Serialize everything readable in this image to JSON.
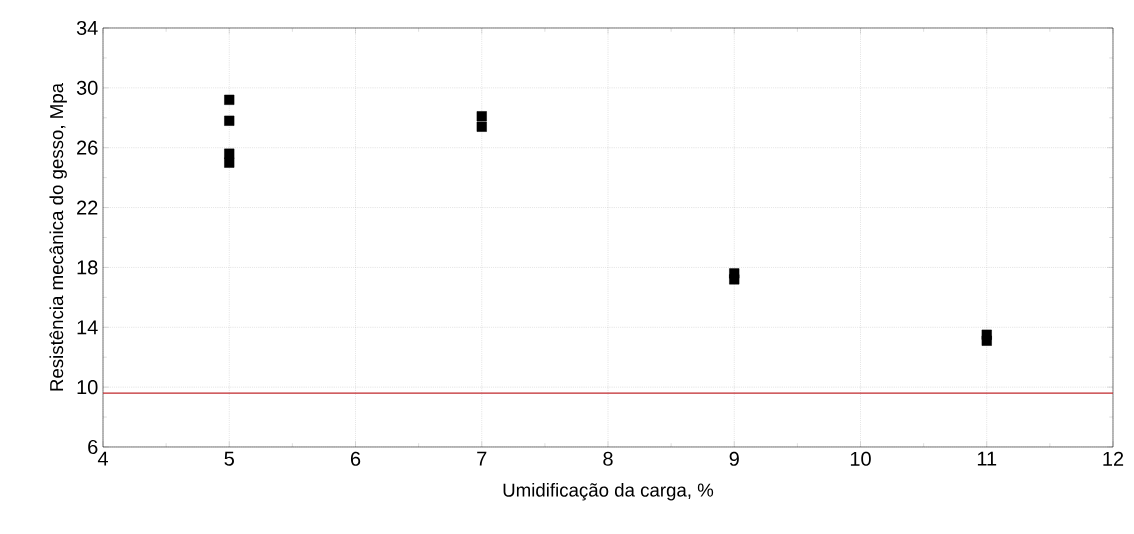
{
  "chart_data": {
    "type": "scatter",
    "xlabel": "Umidificação da carga, %",
    "ylabel": "Resistência mecânica do gesso, Mpa",
    "x": [
      5,
      5,
      5,
      5,
      7,
      7,
      9,
      9,
      11,
      11
    ],
    "values": [
      29.2,
      27.8,
      25.0,
      25.6,
      27.4,
      28.1,
      17.2,
      17.6,
      13.1,
      13.5
    ],
    "color": "#000000",
    "marker": "square",
    "grid": true,
    "xlim": [
      4,
      12
    ],
    "xticks": [
      4,
      5,
      6,
      7,
      8,
      9,
      10,
      11,
      12
    ],
    "ylim": [
      6,
      34
    ],
    "yticks": [
      6,
      10,
      14,
      18,
      22,
      26,
      30,
      34
    ],
    "ref_lines": [
      {
        "axis": "y",
        "value": 9.6,
        "color": "#c0282d"
      }
    ]
  }
}
